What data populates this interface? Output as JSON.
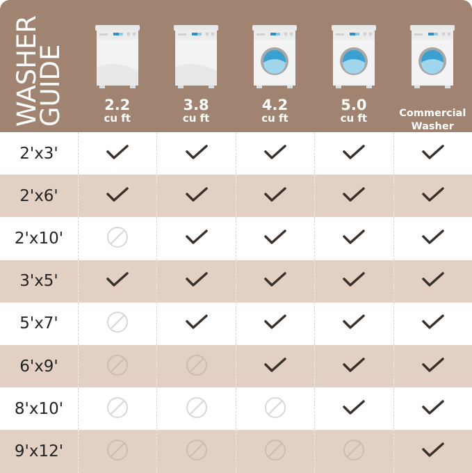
{
  "title": {
    "line1": "WASHER",
    "line2": "GUIDE"
  },
  "colors": {
    "header": "#a08370",
    "tan_row": "#e1d0c3",
    "check": "#3a302a",
    "no": "#d8d8d8"
  },
  "columns": [
    {
      "value": "2.2",
      "unit": "cu ft",
      "icon": "top-load-washer-icon"
    },
    {
      "value": "3.8",
      "unit": "cu ft",
      "icon": "top-load-washer-icon"
    },
    {
      "value": "4.2",
      "unit": "cu ft",
      "icon": "front-load-washer-icon"
    },
    {
      "value": "5.0",
      "unit": "cu ft",
      "icon": "front-load-washer-icon"
    },
    {
      "value": "Commercial",
      "unit": "Washer",
      "icon": "front-load-washer-icon"
    }
  ],
  "rows": [
    {
      "size": "2'x3'",
      "fits": [
        true,
        true,
        true,
        true,
        true
      ]
    },
    {
      "size": "2'x6'",
      "fits": [
        true,
        true,
        true,
        true,
        true
      ]
    },
    {
      "size": "2'x10'",
      "fits": [
        false,
        true,
        true,
        true,
        true
      ]
    },
    {
      "size": "3'x5'",
      "fits": [
        true,
        true,
        true,
        true,
        true
      ]
    },
    {
      "size": "5'x7'",
      "fits": [
        false,
        true,
        true,
        true,
        true
      ]
    },
    {
      "size": "6'x9'",
      "fits": [
        false,
        false,
        true,
        true,
        true
      ]
    },
    {
      "size": "8'x10'",
      "fits": [
        false,
        false,
        false,
        true,
        true
      ]
    },
    {
      "size": "9'x12'",
      "fits": [
        false,
        false,
        false,
        false,
        true
      ]
    }
  ]
}
